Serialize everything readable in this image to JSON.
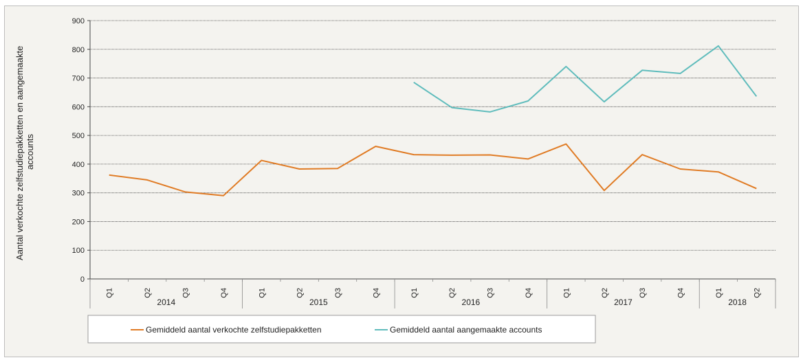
{
  "chart_data": {
    "type": "line",
    "ylabel": "Aantal verkochte zelfstudiepakketten en aangemaakte accounts",
    "ylim": [
      0,
      900
    ],
    "yticks": [
      0,
      100,
      200,
      300,
      400,
      500,
      600,
      700,
      800,
      900
    ],
    "grid": true,
    "legend_position": "bottom",
    "categories": [
      "2014 Q1",
      "2014 Q2",
      "2014 Q3",
      "2014 Q4",
      "2015 Q1",
      "2015 Q2",
      "2015 Q3",
      "2015 Q4",
      "2016 Q1",
      "2016 Q2",
      "2016 Q3",
      "2016 Q4",
      "2017 Q1",
      "2017 Q2",
      "2017 Q3",
      "2017 Q4",
      "2018 Q1",
      "2018 Q2"
    ],
    "quarter_labels": [
      "Q1",
      "Q2",
      "Q3",
      "Q4",
      "Q1",
      "Q2",
      "Q3",
      "Q4",
      "Q1",
      "Q2",
      "Q3",
      "Q4",
      "Q1",
      "Q2",
      "Q3",
      "Q4",
      "Q1",
      "Q2"
    ],
    "year_groups": [
      {
        "label": "2014",
        "count": 4
      },
      {
        "label": "2015",
        "count": 4
      },
      {
        "label": "2016",
        "count": 4
      },
      {
        "label": "2017",
        "count": 4
      },
      {
        "label": "2018",
        "count": 2
      }
    ],
    "series": [
      {
        "name": "Gemiddeld aantal verkochte zelfstudiepakketten",
        "color": "#e07b24",
        "values": [
          362,
          345,
          303,
          290,
          413,
          383,
          385,
          462,
          433,
          431,
          432,
          418,
          470,
          308,
          433,
          383,
          373,
          315
        ]
      },
      {
        "name": "Gemiddeld aantal aangemaakte accounts",
        "color": "#5fbcbc",
        "values": [
          null,
          null,
          null,
          null,
          null,
          null,
          null,
          null,
          685,
          597,
          582,
          620,
          740,
          617,
          727,
          716,
          812,
          636
        ]
      }
    ]
  }
}
